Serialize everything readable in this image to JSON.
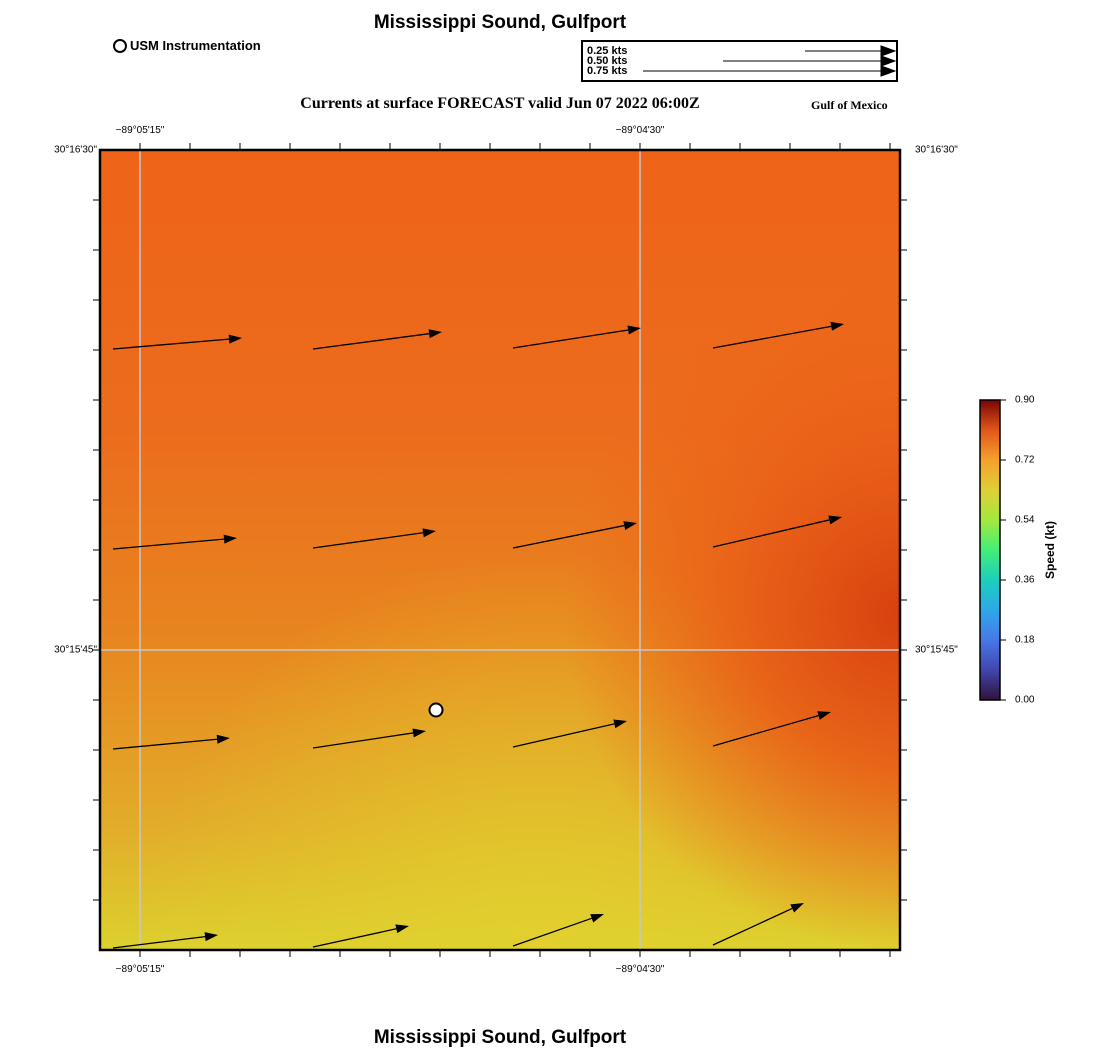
{
  "header": {
    "title": "Mississippi Sound, Gulfport",
    "subtitle": "Currents at surface FORECAST valid Jun 07 2022 06:00Z",
    "region": "Gulf of Mexico"
  },
  "footer": {
    "title": "Mississippi Sound, Gulfport"
  },
  "legend": {
    "station_label": "USM Instrumentation"
  },
  "vector_scale": {
    "labels": [
      "0.25 kts",
      "0.50 kts",
      "0.75 kts"
    ],
    "values_kts": [
      0.25,
      0.5,
      0.75
    ]
  },
  "map": {
    "lon_labels": [
      "−89°05'15\"",
      "−89°04'30\""
    ],
    "lat_labels": [
      "30°16'30\"",
      "30°15'45\""
    ],
    "colors": {
      "high_speed": "#d94412",
      "mid_speed": "#ee6a1c",
      "low_speed": "#dccf2e",
      "grid": "#c0c0c0",
      "station_fill": "#ffffff",
      "arrow": "#000000"
    }
  },
  "colorbar": {
    "title": "Speed (kt)",
    "tick_labels": [
      "0.90",
      "0.72",
      "0.54",
      "0.36",
      "0.18",
      "0.00"
    ]
  }
}
